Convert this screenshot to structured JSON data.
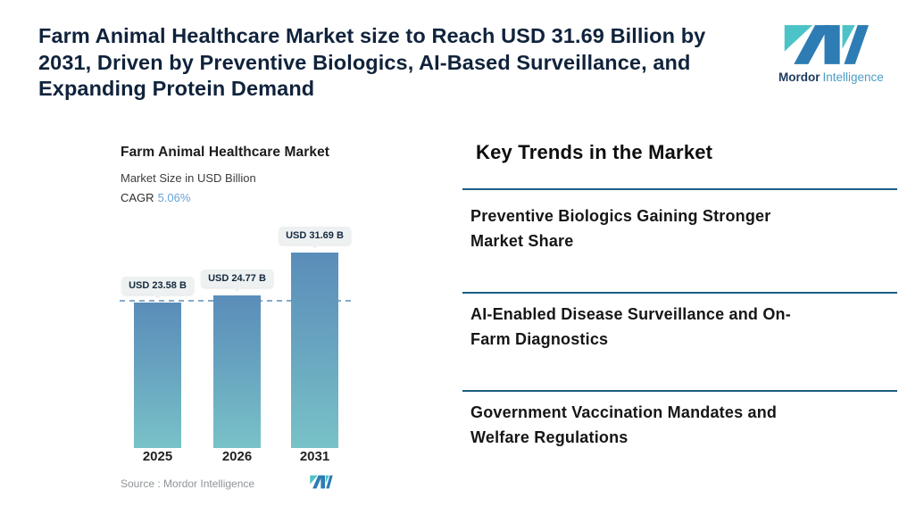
{
  "header": {
    "headline": "Farm Animal Healthcare Market size to Reach USD 31.69 Billion by\n2031, Driven by Preventive Biologics, AI-Based Surveillance, and\nExpanding Protein Demand",
    "logo": {
      "brand_bold": "Mordor",
      "brand_light": "Intelligence"
    }
  },
  "chart": {
    "title": "Farm Animal Healthcare Market",
    "subtitle": "Market Size in USD Billion",
    "cagr_label": "CAGR",
    "cagr_value": "5.06%",
    "source": "Source :  Mordor Intelligence",
    "bars": [
      {
        "year": "2025",
        "label": "USD 23.58 B"
      },
      {
        "year": "2026",
        "label": "USD 24.77 B"
      },
      {
        "year": "2031",
        "label": "USD 31.69 B"
      }
    ]
  },
  "chart_data": {
    "type": "bar",
    "title": "Farm Animal Healthcare Market",
    "ylabel": "Market Size in USD Billion",
    "xlabel": "",
    "categories": [
      "2025",
      "2026",
      "2031"
    ],
    "values": [
      23.58,
      24.77,
      31.69
    ],
    "data_labels": [
      "USD 23.58 B",
      "USD 24.77 B",
      "USD 31.69 B"
    ],
    "cagr_percent": 5.06,
    "reference_dashed_line_at": 23.58,
    "ylim": [
      0,
      37
    ],
    "grid": false,
    "legend": false,
    "bar_gradient": [
      "#5a8dba",
      "#79c2c8"
    ]
  },
  "trends": {
    "heading": "Key Trends in the Market",
    "items": [
      {
        "text": "Preventive Biologics Gaining Stronger\nMarket Share"
      },
      {
        "text": "AI-Enabled Disease Surveillance and On-\nFarm Diagnostics"
      },
      {
        "text": "Government Vaccination Mandates and\nWelfare Regulations"
      }
    ]
  },
  "colors": {
    "headline_text": "#10233c",
    "brand_teal": "#4cc3c6",
    "brand_blue": "#2d7cb4",
    "trend_rule": "#1c5f83",
    "dashed_line": "#86aac8",
    "cagr_value_blue": "#68a4da",
    "pill_background": "#eef1f1"
  }
}
